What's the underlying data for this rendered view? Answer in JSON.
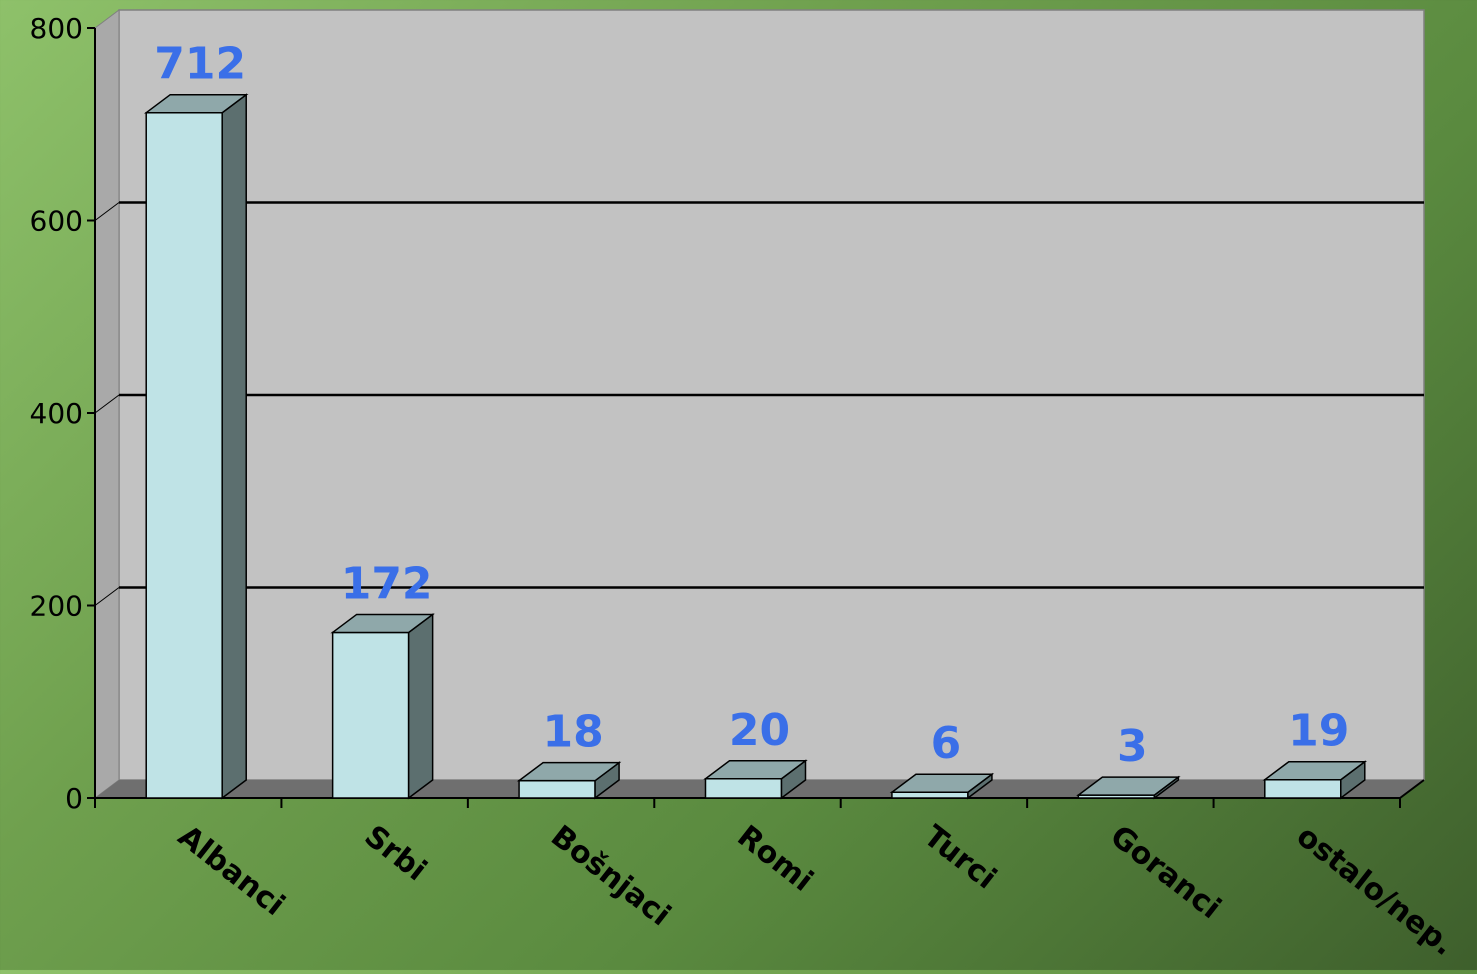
{
  "chart_data": {
    "type": "bar",
    "categories": [
      "Albanci",
      "Srbi",
      "Bošnjaci",
      "Romi",
      "Turci",
      "Goranci",
      "ostalo/nep."
    ],
    "values": [
      712,
      172,
      18,
      20,
      6,
      3,
      19
    ],
    "data_labels": [
      "712",
      "172",
      "18",
      "20",
      "6",
      "3",
      "19"
    ],
    "ylim": [
      0,
      800
    ],
    "yticks": [
      0,
      200,
      400,
      600,
      800
    ],
    "ytick_labels": [
      "0",
      "200",
      "400",
      "600",
      "800"
    ],
    "grid": true,
    "style": "3d-column"
  },
  "colors": {
    "plot_back": "#c2c2c2",
    "plot_floor": "#6f6f6f",
    "bar_front": "#bfe3e6",
    "bar_side": "#5c6f6f",
    "bar_top": "#8fa8aa",
    "data_label": "#3a6fe8",
    "axis": "#000000",
    "gridline": "#000000"
  }
}
